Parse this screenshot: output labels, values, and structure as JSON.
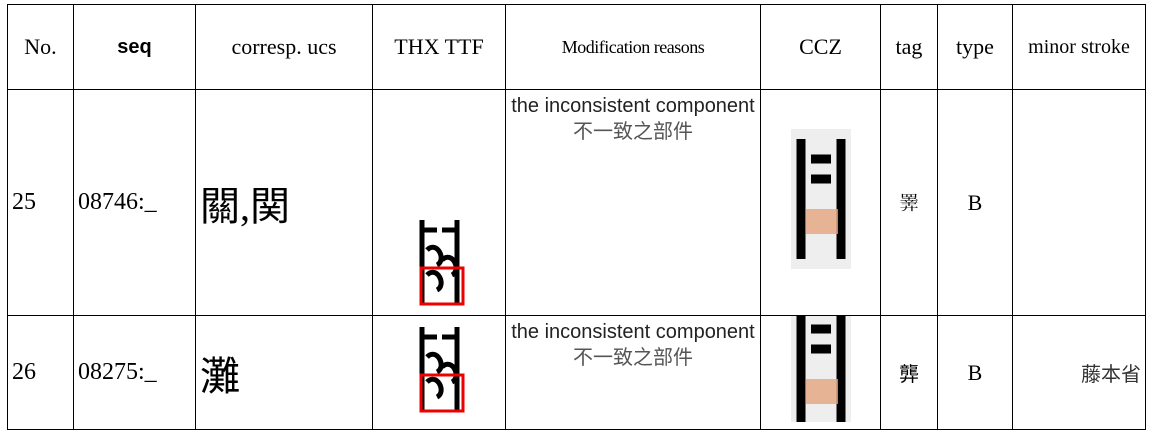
{
  "table": {
    "header": [
      "No.",
      "seq",
      "corresp. ucs",
      "THX TTF",
      "Modification reasons",
      "CCZ",
      "tag",
      "type",
      "minor stroke"
    ],
    "rows": [
      {
        "no": "25",
        "seq": "08746:_",
        "ucs": "關,関",
        "reason_en": "the inconsistent component",
        "reason_zh": "不一致之部件",
        "tag": "𢍰",
        "type": "B"
      },
      {
        "no": "26",
        "seq": "08275:_",
        "ucs": "灘",
        "reason_en": "the inconsistent component",
        "reason_zh": "不一致之部件",
        "tag": "龏",
        "type": "B",
        "minor_stroke": "藤本省"
      }
    ]
  }
}
